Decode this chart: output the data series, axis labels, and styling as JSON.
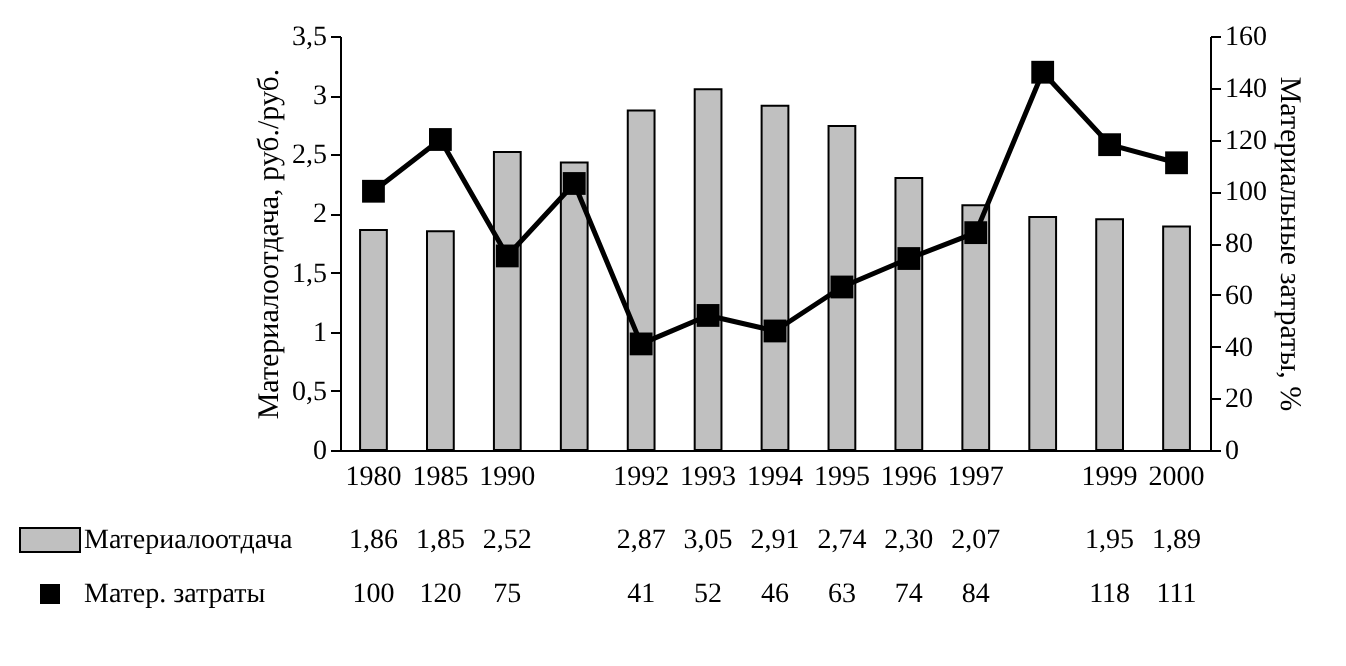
{
  "chart_data": {
    "type": "bar",
    "ylabel": "Материалоотдача, руб./руб.",
    "y2label": "Материальные затраты, %",
    "categories": [
      "1980",
      "1985",
      "1990",
      null,
      "1992",
      "1993",
      "1994",
      "1995",
      "1996",
      "1997",
      null,
      "1999",
      "2000"
    ],
    "series": [
      {
        "name": "Материалоотдача",
        "color": "#c0c0c0",
        "values": [
          1.86,
          1.85,
          2.52,
          2.43,
          2.87,
          3.05,
          2.91,
          2.74,
          2.3,
          2.07,
          1.97,
          1.95,
          1.89
        ],
        "value_labels": [
          "1,86",
          "1,85",
          "2,52",
          null,
          "2,87",
          "3,05",
          "2,91",
          "2,74",
          "2,30",
          "2,07",
          null,
          "1,95",
          "1,89"
        ]
      },
      {
        "name": "Матер. затраты",
        "type": "line",
        "axis": "y2",
        "color": "#000000",
        "values": [
          100,
          120,
          75,
          103,
          41,
          52,
          46,
          63,
          74,
          84,
          146,
          118,
          111
        ],
        "value_labels": [
          "100",
          "120",
          "75",
          null,
          "41",
          "52",
          "46",
          "63",
          "74",
          "84",
          null,
          "118",
          "111"
        ]
      }
    ],
    "ylim": [
      0,
      3.5
    ],
    "yticks": [
      0,
      {
        "value": 0.5,
        "label": "0,5"
      },
      1,
      {
        "value": 1.5,
        "label": "1,5"
      },
      2,
      {
        "value": 2.5,
        "label": "2,5"
      },
      3,
      {
        "value": 3.5,
        "label": "3,5"
      }
    ],
    "y2lim": [
      0,
      160
    ],
    "y2ticks": [
      0,
      20,
      40,
      60,
      80,
      100,
      120,
      140,
      160
    ],
    "marker": "square",
    "legend": "bottom left",
    "grid": false
  }
}
